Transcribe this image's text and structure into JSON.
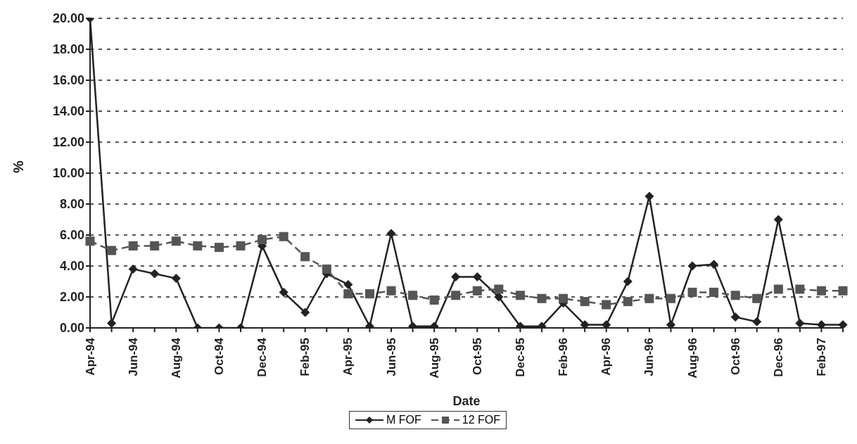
{
  "chart_data": {
    "type": "line",
    "xlabel": "Date",
    "ylabel": "%",
    "categories": [
      "Apr-94",
      null,
      "Jun-94",
      null,
      "Aug-94",
      null,
      "Oct-94",
      null,
      "Dec-94",
      null,
      "Feb-95",
      null,
      "Apr-95",
      null,
      "Jun-95",
      null,
      "Aug-95",
      null,
      "Oct-95",
      null,
      "Dec-95",
      null,
      "Feb-96",
      null,
      "Apr-96",
      null,
      "Jun-96",
      null,
      "Aug-96",
      null,
      "Oct-96",
      null,
      "Dec-96",
      null,
      "Feb-97",
      null
    ],
    "series": [
      {
        "name": "M FOF",
        "color": "#222222",
        "marker": "diamond",
        "line_style": "solid",
        "values": [
          20,
          0.3,
          3.8,
          3.5,
          3.2,
          0,
          0,
          0,
          5.3,
          2.3,
          1.0,
          3.5,
          2.8,
          0.1,
          6.1,
          0.1,
          0.1,
          3.3,
          3.3,
          2.0,
          0.1,
          0.1,
          1.6,
          0.2,
          0.2,
          3.0,
          8.5,
          0.2,
          4.0,
          4.1,
          0.7,
          0.4,
          7.0,
          0.3,
          0.2,
          0.2
        ]
      },
      {
        "name": "12 FOF",
        "color": "#555555",
        "marker": "square",
        "line_style": "dashed",
        "values": [
          5.6,
          5.0,
          5.3,
          5.3,
          5.6,
          5.3,
          5.2,
          5.3,
          5.7,
          5.9,
          4.6,
          3.8,
          2.2,
          2.2,
          2.4,
          2.1,
          1.8,
          2.1,
          2.4,
          2.5,
          2.1,
          1.9,
          1.9,
          1.7,
          1.5,
          1.7,
          1.9,
          1.9,
          2.3,
          2.3,
          2.1,
          1.9,
          2.5,
          2.5,
          2.4,
          2.4
        ]
      }
    ],
    "ylim": [
      0,
      20
    ],
    "yticks": [
      {
        "value": 0,
        "label": "0.00"
      },
      {
        "value": 2,
        "label": "2.00"
      },
      {
        "value": 4,
        "label": "4.00"
      },
      {
        "value": 6,
        "label": "6.00"
      },
      {
        "value": 8,
        "label": "8.00"
      },
      {
        "value": 10,
        "label": "10.00"
      },
      {
        "value": 12,
        "label": "12.00"
      },
      {
        "value": 14,
        "label": "14.00"
      },
      {
        "value": 16,
        "label": "16.00"
      },
      {
        "value": 18,
        "label": "18.00"
      },
      {
        "value": 20,
        "label": "20.00"
      }
    ],
    "grid": "y",
    "legend": "bottom"
  }
}
